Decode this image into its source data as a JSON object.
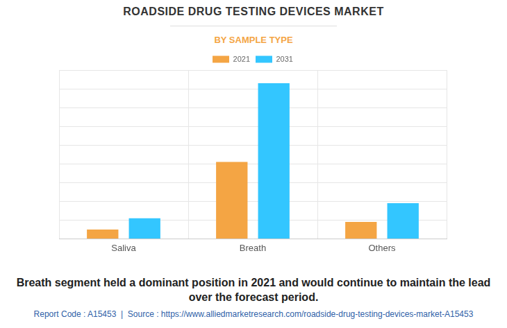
{
  "chart_data": {
    "type": "bar",
    "title": "ROADSIDE DRUG TESTING DEVICES MARKET",
    "subtitle": "BY SAMPLE TYPE",
    "caption": "Breath segment held a dominant position in 2021 and would continue to maintain the lead over the forecast period.",
    "source": "Report Code : A15453  |  Source : https://www.alliedmarketresearch.com/roadside-drug-testing-devices-market-A15453",
    "categories": [
      "Saliva",
      "Breath",
      "Others"
    ],
    "series": [
      {
        "name": "2021",
        "color": "#f4a544",
        "values": [
          0.5,
          4.1,
          0.9
        ]
      },
      {
        "name": "2031",
        "color": "#33c6ff",
        "values": [
          1.1,
          8.3,
          1.9
        ]
      }
    ],
    "ylim": [
      0,
      9
    ],
    "yticks": [
      0,
      1,
      2,
      3,
      4,
      5,
      6,
      7,
      8,
      9
    ],
    "grid": true,
    "legend": "top",
    "tick_labels": "x"
  }
}
